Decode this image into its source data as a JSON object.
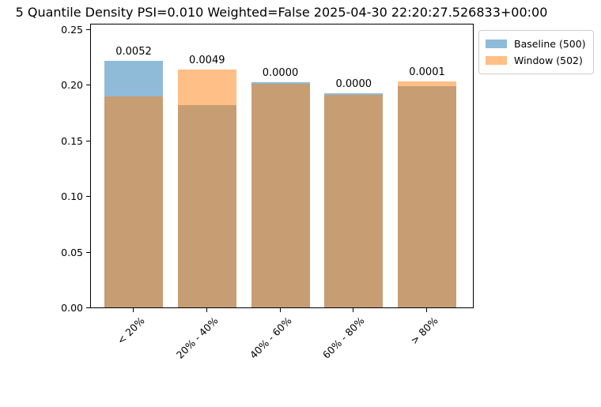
{
  "title": "5 Quantile Density PSI=0.010 Weighted=False 2025-04-30 22:20:27.526833+00:00",
  "legend": {
    "entries": [
      {
        "label": "Baseline (500)",
        "swatch_color": "#8FBBD9"
      },
      {
        "label": "Window (502)",
        "swatch_color": "#FFBF86"
      }
    ]
  },
  "chart_data": {
    "type": "bar",
    "subtype": "overlapping-translucent",
    "title": "5 Quantile Density PSI=0.010 Weighted=False 2025-04-30 22:20:27.526833+00:00",
    "categories": [
      "< 20%",
      "20% - 40%",
      "40% - 60%",
      "60% - 80%",
      "> 80%"
    ],
    "series": [
      {
        "name": "Baseline (500)",
        "color": "#1f77b4",
        "alpha": 0.5,
        "values": [
          0.2216,
          0.1818,
          0.2024,
          0.1925,
          0.1989
        ]
      },
      {
        "name": "Window (502)",
        "color": "#ff7f0e",
        "alpha": 0.5,
        "values": [
          0.1894,
          0.2136,
          0.201,
          0.1911,
          0.2031
        ]
      }
    ],
    "bar_labels": [
      "0.0052",
      "0.0049",
      "0.0000",
      "0.0000",
      "0.0001"
    ],
    "overlap_color": "#C79D74",
    "psi_total": "0.010",
    "weighted": "False",
    "timestamp": "2025-04-30 22:20:27.526833+00:00",
    "xlabel": "",
    "ylabel": "",
    "ylim": [
      0,
      0.2557
    ],
    "y_ticks": [
      0.0,
      0.05,
      0.1,
      0.15,
      0.2,
      0.25
    ],
    "y_tick_labels": [
      "0.00",
      "0.05",
      "0.10",
      "0.15",
      "0.20",
      "0.25"
    ],
    "x_tick_rotation": 45,
    "grid": false,
    "legend_position": "outside upper right"
  }
}
